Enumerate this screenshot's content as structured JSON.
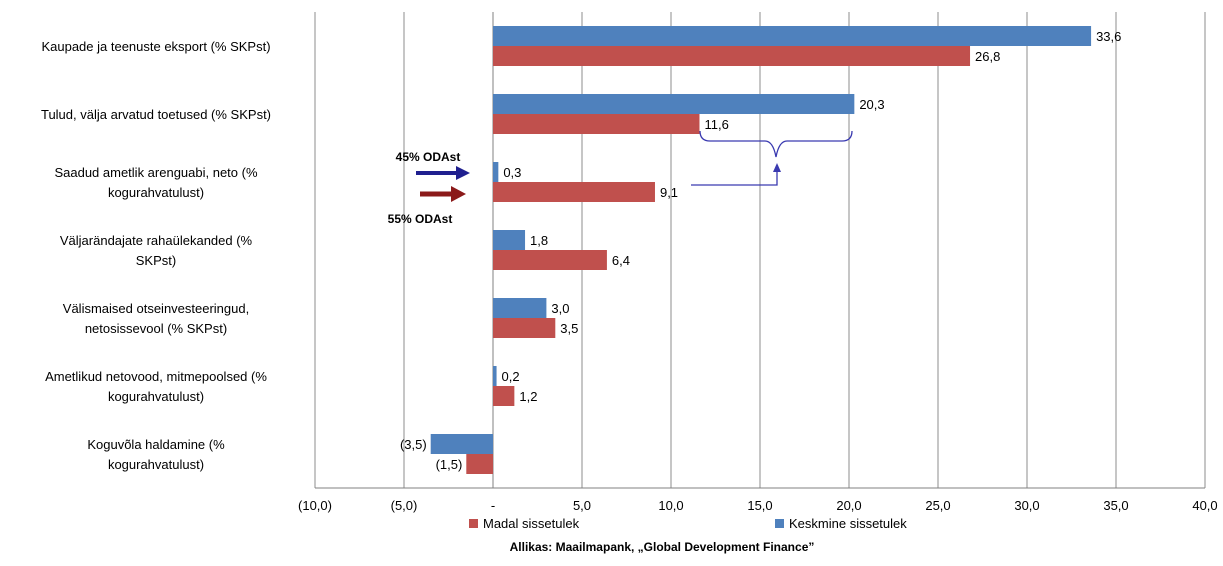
{
  "chart_data": {
    "type": "bar",
    "orientation": "horizontal",
    "categories": [
      [
        "Kaupade ja teenuste eksport (% SKPst)"
      ],
      [
        "Tulud, välja arvatud toetused (% SKPst)"
      ],
      [
        "Saadud ametlik arenguabi, neto (%",
        "kogurahvatulust)"
      ],
      [
        "Väljarändajate rahaülekanded (%",
        "SKPst)"
      ],
      [
        "Välismaised otseinvesteeringud,",
        "netosissevool (% SKPst)"
      ],
      [
        "Ametlikud netovood, mitmepoolsed (%",
        "kogurahvatulust)"
      ],
      [
        "Koguvõla haldamine (%",
        "kogurahvatulust)"
      ]
    ],
    "series": [
      {
        "name": "Keskmine sissetulek",
        "color": "#4F81BD",
        "values": [
          33.6,
          20.3,
          0.3,
          1.8,
          3.0,
          0.2,
          -3.5
        ],
        "labels": [
          "33,6",
          "20,3",
          "0,3",
          "1,8",
          "3,0",
          "0,2",
          "(3,5)"
        ]
      },
      {
        "name": "Madal sissetulek",
        "color": "#C0504D",
        "values": [
          26.8,
          11.6,
          9.1,
          6.4,
          3.5,
          1.2,
          -1.5
        ],
        "labels": [
          "26,8",
          "11,6",
          "9,1",
          "6,4",
          "3,5",
          "1,2",
          "(1,5)"
        ]
      }
    ],
    "xlim": [
      -10,
      40
    ],
    "xticks": [
      -10,
      -5,
      0,
      5,
      10,
      15,
      20,
      25,
      30,
      35,
      40
    ],
    "xtick_labels": [
      "(10,0)",
      "(5,0)",
      "-",
      "5,0",
      "10,0",
      "15,0",
      "20,0",
      "25,0",
      "30,0",
      "35,0",
      "40,0"
    ],
    "grid": true,
    "legend_position": "bottom",
    "legend_order": [
      "Madal sissetulek",
      "Keskmine sissetulek"
    ],
    "annotations": {
      "oda_blue": "45% ODAst",
      "oda_red": "55% ODAst",
      "blue_arrow_color": "#1F1F8F",
      "red_arrow_color": "#8B1A1A",
      "brace_color": "#3A3AB0"
    },
    "source": "Allikas: Maailmapank, „Global Development Finance”"
  }
}
